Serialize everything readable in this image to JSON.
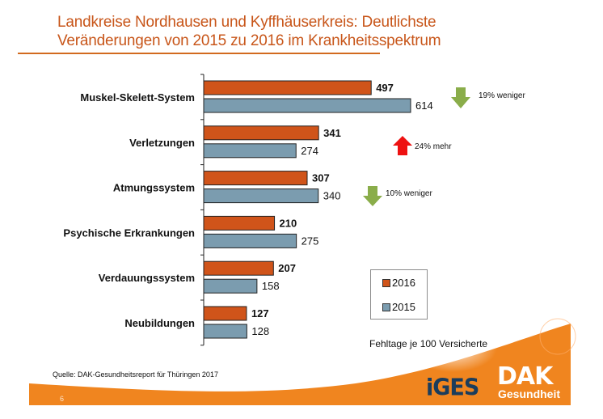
{
  "header": {
    "title_line1": "Landkreise Nordhausen und Kyffhäuserkreis: Deutlichste",
    "title_line2": "Veränderungen von 2015 zu 2016 im Krankheitsspektrum"
  },
  "colors": {
    "accent": "#c8561a",
    "series_2016": "#d0541a",
    "series_2015": "#7b9caf",
    "arrow_down": "#8aad4a",
    "arrow_up": "#ee1111",
    "footer_orange": "#f0851f"
  },
  "chart_data": {
    "type": "bar",
    "orientation": "horizontal",
    "title": "Landkreise Nordhausen und Kyffhäuserkreis: Deutlichste Veränderungen von 2015 zu 2016 im Krankheitsspektrum",
    "xlabel": "Fehltage je 100 Versicherte",
    "ylabel": "",
    "categories": [
      "Muskel-Skelett-System",
      "Verletzungen",
      "Atmungssystem",
      "Psychische Erkrankungen",
      "Verdauungssystem",
      "Neubildungen"
    ],
    "series": [
      {
        "name": "2016",
        "values": [
          497,
          341,
          307,
          210,
          207,
          127
        ]
      },
      {
        "name": "2015",
        "values": [
          614,
          274,
          340,
          275,
          158,
          128
        ]
      }
    ],
    "xlim": [
      0,
      650
    ],
    "grid": false,
    "legend": {
      "placement": "bottom-right",
      "entries": [
        "2016",
        "2015"
      ]
    },
    "annotations": [
      {
        "category": "Muskel-Skelett-System",
        "direction": "down",
        "text": "19% weniger"
      },
      {
        "category": "Verletzungen",
        "direction": "up",
        "text": "24% mehr"
      },
      {
        "category": "Atmungssystem",
        "direction": "down",
        "text": "10% weniger"
      }
    ]
  },
  "legend": {
    "label_2016": "2016",
    "label_2015": "2015"
  },
  "notes": {
    "muskel": "19% weniger",
    "verletzungen": "24% mehr",
    "atmung": "10% weniger"
  },
  "unit_label": "Fehltage je 100 Versicherte",
  "footer": {
    "source": "Quelle: DAK-Gesundheitsreport für Thüringen 2017",
    "page_number": "6",
    "logo_iges": "iGES",
    "logo_dak": "DAK",
    "logo_dak_sub": "Gesundheit"
  }
}
